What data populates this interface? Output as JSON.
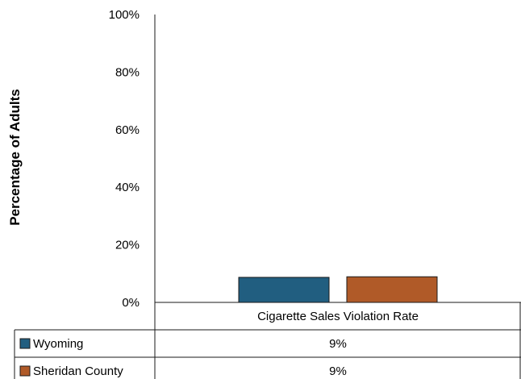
{
  "chart_data": {
    "type": "bar",
    "title": "",
    "xlabel": "",
    "ylabel": "Percentage of Adults",
    "categories": [
      "Cigarette Sales Violation Rate"
    ],
    "series": [
      {
        "name": "Wyoming",
        "values": [
          0.087
        ],
        "labels": [
          "9%"
        ],
        "color": "#215e80"
      },
      {
        "name": "Sheridan County",
        "values": [
          0.089
        ],
        "labels": [
          "9%"
        ],
        "color": "#b05a28"
      }
    ],
    "ylim": [
      0,
      1
    ],
    "yticks": [
      "0%",
      "20%",
      "40%",
      "60%",
      "80%",
      "100%"
    ],
    "grid": false,
    "legend": "data-table"
  }
}
